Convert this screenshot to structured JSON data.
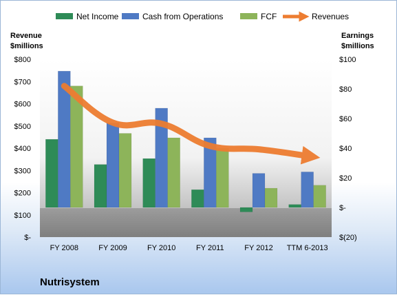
{
  "chart_data": {
    "type": "bar",
    "title": "Nutrisystem",
    "categories": [
      "FY 2008",
      "FY 2009",
      "FY 2010",
      "FY 2011",
      "FY 2012",
      "TTM 6-2013"
    ],
    "left_axis": {
      "label_line1": "Revenue",
      "label_line2": "$millions",
      "ylim": [
        0,
        800
      ],
      "ticks": [
        "$-",
        "$100",
        "$200",
        "$300",
        "$400",
        "$500",
        "$600",
        "$700",
        "$800"
      ]
    },
    "right_axis": {
      "label_line1": "Earnings",
      "label_line2": "$millions",
      "ylim": [
        -20,
        100
      ],
      "ticks": [
        "$(20)",
        "$-",
        "$20",
        "$40",
        "$60",
        "$80",
        "$100"
      ]
    },
    "series": [
      {
        "name": "Net Income",
        "type": "bar",
        "axis": "right",
        "color": "#2e8b57",
        "values": [
          46,
          29,
          33,
          12,
          -3,
          2
        ]
      },
      {
        "name": "Cash from Operations",
        "type": "bar",
        "axis": "right",
        "color": "#4f7ac4",
        "values": [
          92,
          57,
          67,
          47,
          23,
          24
        ]
      },
      {
        "name": "FCF",
        "type": "bar",
        "axis": "right",
        "color": "#8db45a",
        "values": [
          82,
          50,
          47,
          40,
          13,
          15
        ]
      },
      {
        "name": "Revenues",
        "type": "line",
        "axis": "left",
        "color": "#ed7d31",
        "values": [
          680,
          515,
          510,
          410,
          395,
          365
        ]
      }
    ],
    "legend_position": "top",
    "grid": false
  }
}
